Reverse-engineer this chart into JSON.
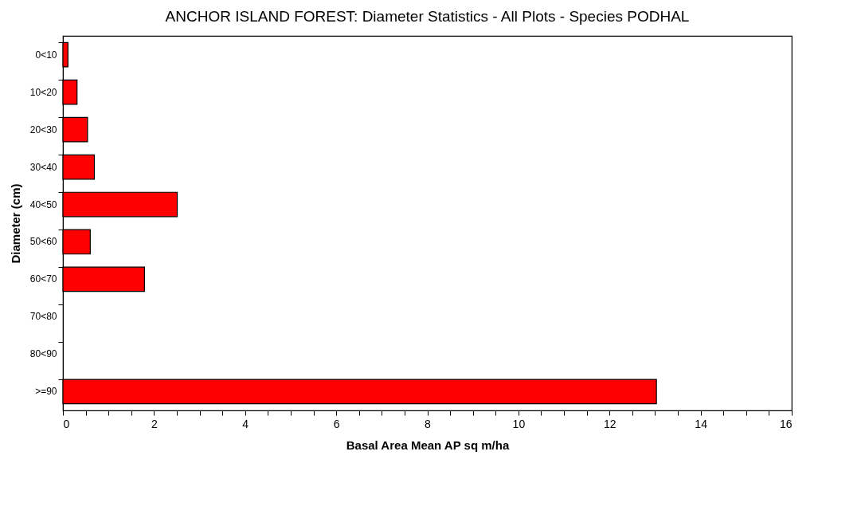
{
  "chart_data": {
    "type": "bar",
    "orientation": "horizontal",
    "title": "ANCHOR ISLAND FOREST: Diameter Statistics - All Plots - Species PODHAL",
    "xlabel": "Basal Area Mean AP sq m/ha",
    "ylabel": "Diameter (cm)",
    "categories": [
      "0<10",
      "10<20",
      "20<30",
      "30<40",
      "40<50",
      "50<60",
      "60<70",
      "70<80",
      "80<90",
      ">=90"
    ],
    "values": [
      0.11,
      0.31,
      0.54,
      0.69,
      2.51,
      0.6,
      1.79,
      null,
      null,
      13.03
    ],
    "color": "#ff0000",
    "xlim": [
      0,
      16
    ],
    "xticks": [
      0,
      {
        "value": 0.5,
        "label": null
      },
      {
        "value": 1,
        "label": null
      },
      {
        "value": 1.5,
        "label": null
      },
      2,
      {
        "value": 2.5,
        "label": null
      },
      {
        "value": 3,
        "label": null
      },
      {
        "value": 3.5,
        "label": null
      },
      4,
      {
        "value": 4.5,
        "label": null
      },
      {
        "value": 5,
        "label": null
      },
      {
        "value": 5.5,
        "label": null
      },
      6,
      {
        "value": 6.5,
        "label": null
      },
      {
        "value": 7,
        "label": null
      },
      {
        "value": 7.5,
        "label": null
      },
      8,
      {
        "value": 8.5,
        "label": null
      },
      {
        "value": 9,
        "label": null
      },
      {
        "value": 9.5,
        "label": null
      },
      10,
      {
        "value": 10.5,
        "label": null
      },
      {
        "value": 11,
        "label": null
      },
      {
        "value": 11.5,
        "label": null
      },
      12,
      {
        "value": 12.5,
        "label": null
      },
      {
        "value": 13,
        "label": null
      },
      {
        "value": 13.5,
        "label": null
      },
      14,
      {
        "value": 14.5,
        "label": null
      },
      {
        "value": 15,
        "label": null
      },
      {
        "value": 15.5,
        "label": null
      },
      16
    ],
    "grid": false
  }
}
